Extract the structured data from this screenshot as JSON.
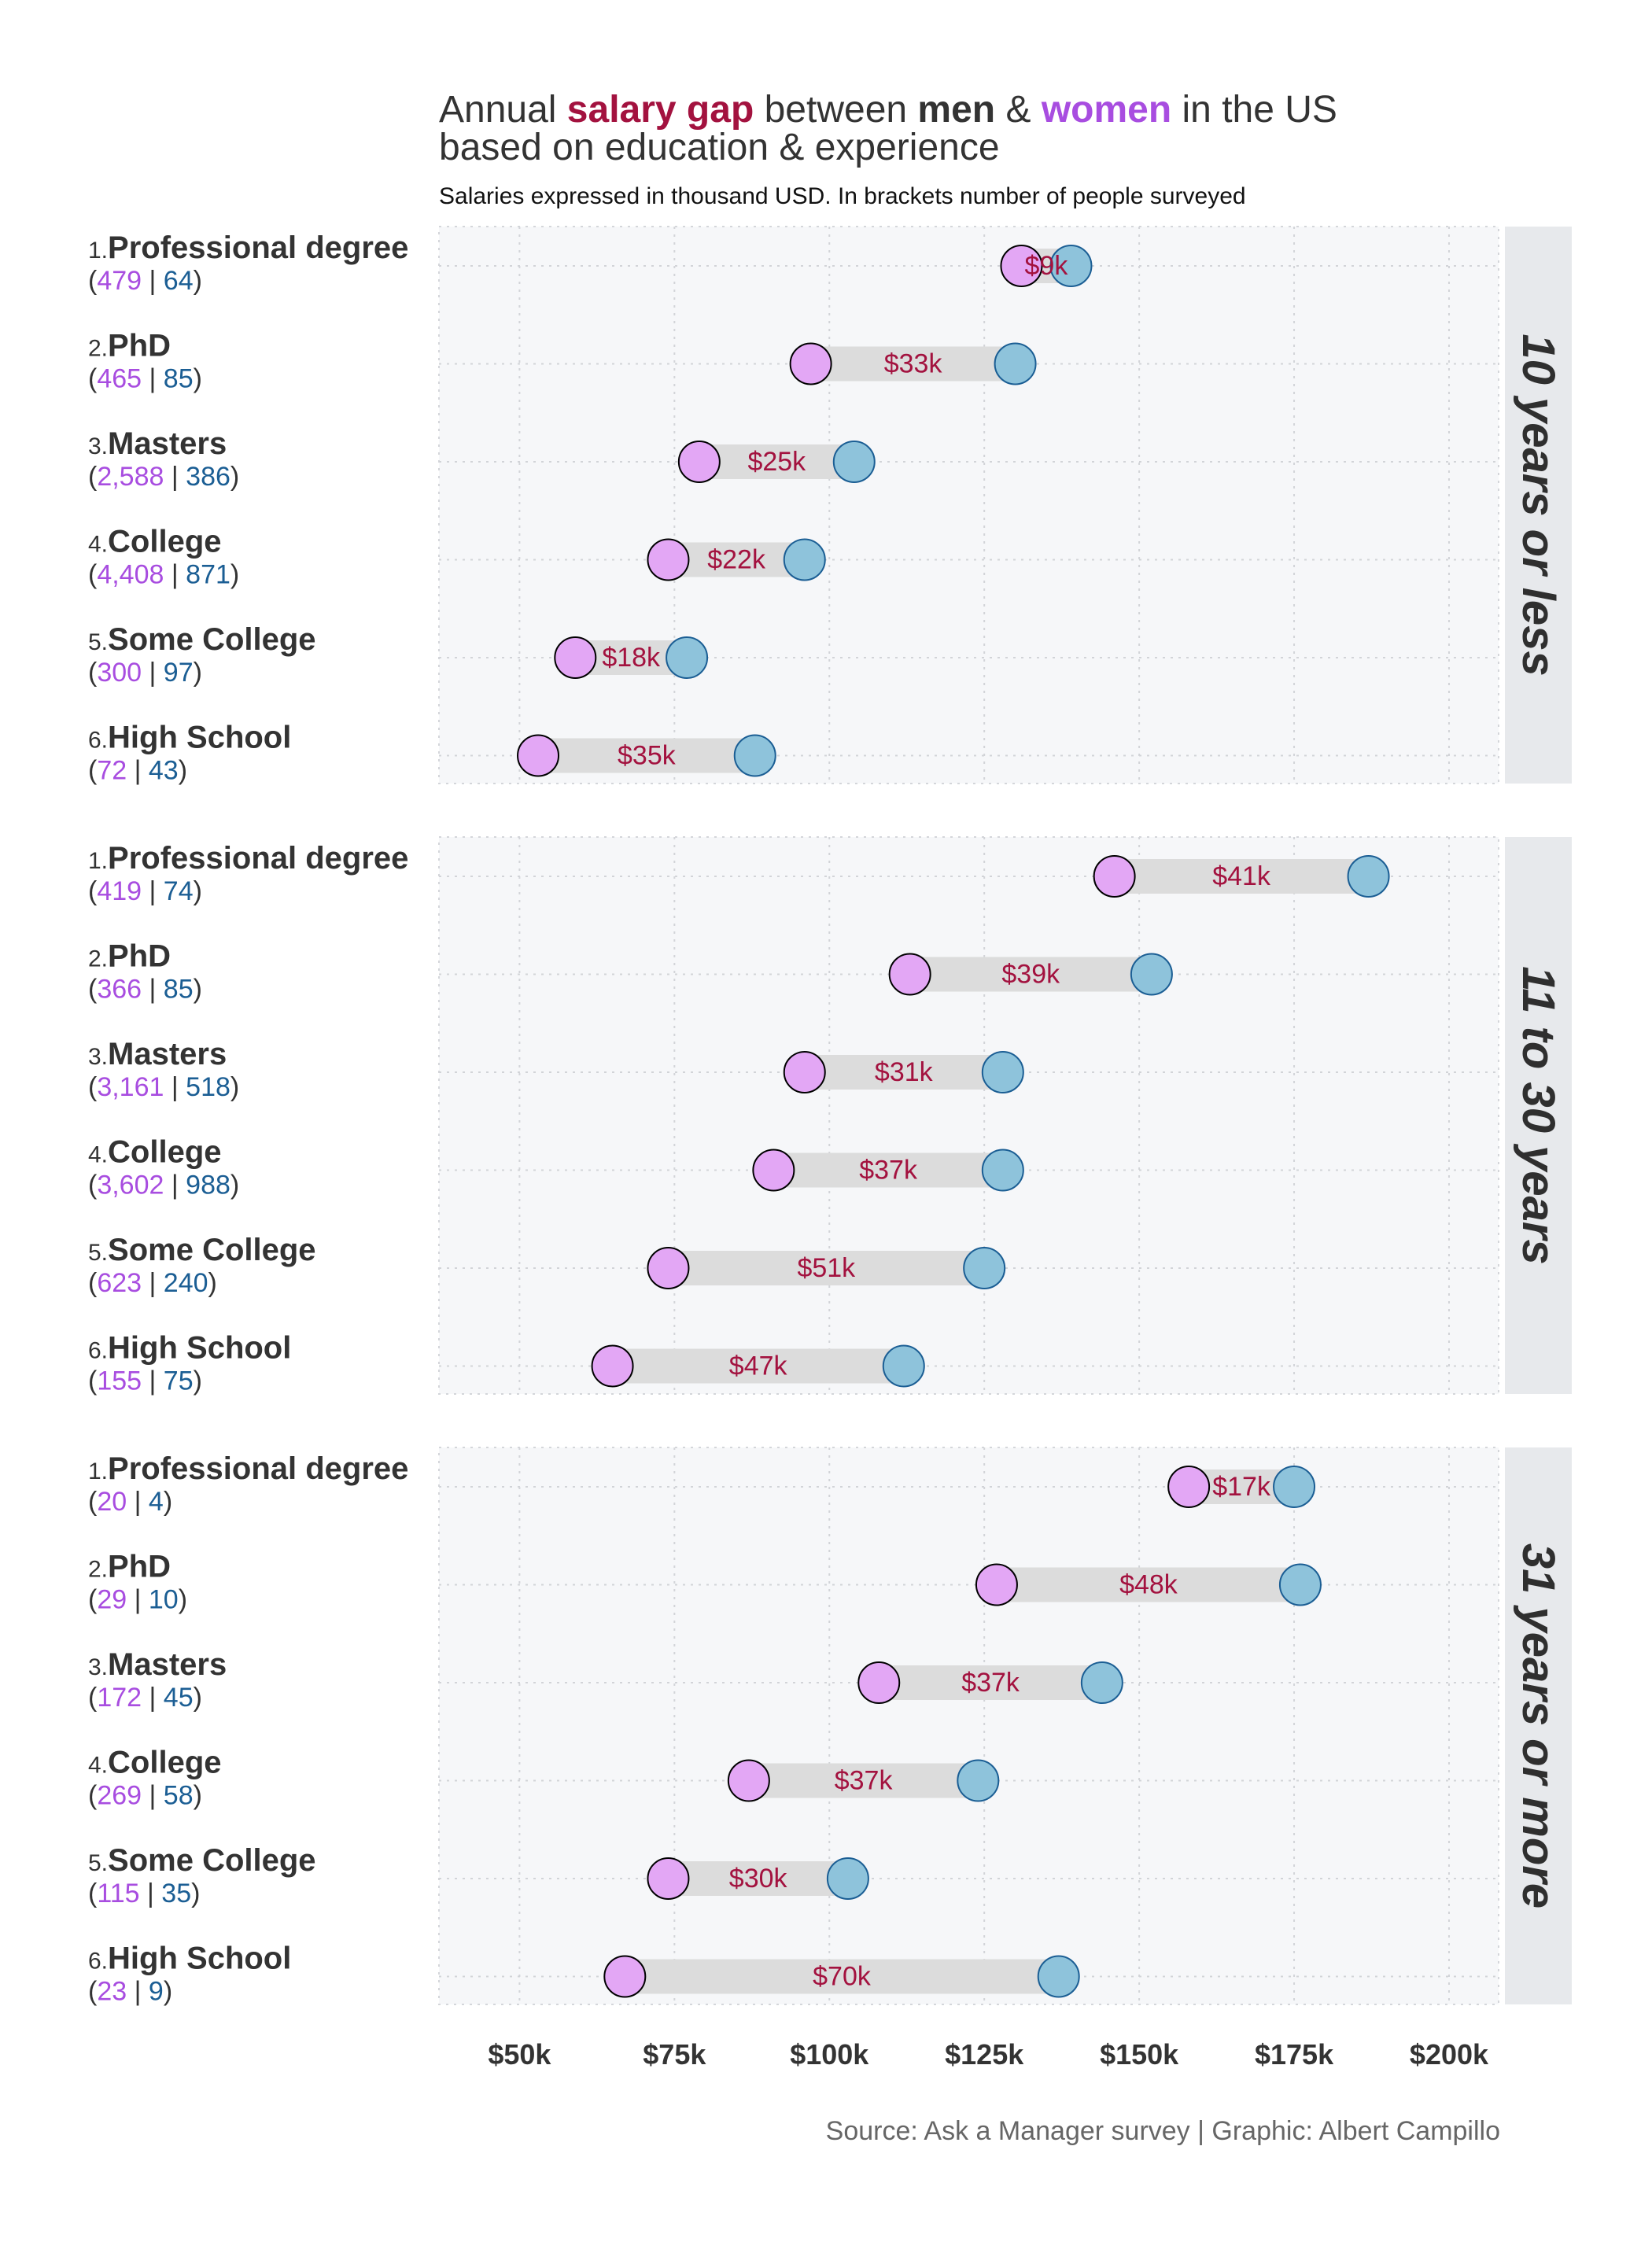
{
  "title": {
    "parts": [
      {
        "text": "Annual ",
        "style": "normal"
      },
      {
        "text": "salary gap",
        "style": "gap"
      },
      {
        "text": " between ",
        "style": "normal"
      },
      {
        "text": "men",
        "style": "men"
      },
      {
        "text": " & ",
        "style": "normal"
      },
      {
        "text": "women",
        "style": "women"
      },
      {
        "text": " in the US",
        "style": "normal"
      }
    ],
    "line2": "based on education & experience"
  },
  "subtitle": "Salaries expressed in thousand USD. In brackets number of people surveyed",
  "caption": "Source: Ask a Manager survey | Graphic: Albert Campillo",
  "colors": {
    "women": "#a84de0",
    "men": "#1b5e94",
    "gap": "#a3123f",
    "women_fill": "#e3a7f5",
    "men_fill": "#8ec3db",
    "bar": "#dcdcdc",
    "panel_bg": "#f6f7f9",
    "strip_bg": "#e7e9ec"
  },
  "chart_data": {
    "type": "dumbbell",
    "x_unit": "thousand USD",
    "x_ticks": [
      50,
      75,
      100,
      125,
      150,
      175,
      200
    ],
    "x_tick_labels": [
      "$50k",
      "$75k",
      "$100k",
      "$125k",
      "$150k",
      "$175k",
      "$200k"
    ],
    "xlim": [
      37,
      208
    ],
    "grid": true,
    "legend": "none",
    "series_names": [
      "women",
      "men"
    ],
    "panels": [
      {
        "label": "10 years or less",
        "rows": [
          {
            "num": "1.",
            "name": "Professional degree",
            "women_n": "479",
            "men_n": "64",
            "women": 131,
            "men": 139,
            "gap": "$9k"
          },
          {
            "num": "2.",
            "name": "PhD",
            "women_n": "465",
            "men_n": "85",
            "women": 97,
            "men": 130,
            "gap": "$33k"
          },
          {
            "num": "3.",
            "name": "Masters",
            "women_n": "2,588",
            "men_n": "386",
            "women": 79,
            "men": 104,
            "gap": "$25k"
          },
          {
            "num": "4.",
            "name": "College",
            "women_n": "4,408",
            "men_n": "871",
            "women": 74,
            "men": 96,
            "gap": "$22k"
          },
          {
            "num": "5.",
            "name": "Some College",
            "women_n": "300",
            "men_n": "97",
            "women": 59,
            "men": 77,
            "gap": "$18k"
          },
          {
            "num": "6.",
            "name": "High School",
            "women_n": "72",
            "men_n": "43",
            "women": 53,
            "men": 88,
            "gap": "$35k"
          }
        ]
      },
      {
        "label": "11 to 30 years",
        "rows": [
          {
            "num": "1.",
            "name": "Professional degree",
            "women_n": "419",
            "men_n": "74",
            "women": 146,
            "men": 187,
            "gap": "$41k"
          },
          {
            "num": "2.",
            "name": "PhD",
            "women_n": "366",
            "men_n": "85",
            "women": 113,
            "men": 152,
            "gap": "$39k"
          },
          {
            "num": "3.",
            "name": "Masters",
            "women_n": "3,161",
            "men_n": "518",
            "women": 96,
            "men": 128,
            "gap": "$31k"
          },
          {
            "num": "4.",
            "name": "College",
            "women_n": "3,602",
            "men_n": "988",
            "women": 91,
            "men": 128,
            "gap": "$37k"
          },
          {
            "num": "5.",
            "name": "Some College",
            "women_n": "623",
            "men_n": "240",
            "women": 74,
            "men": 125,
            "gap": "$51k"
          },
          {
            "num": "6.",
            "name": "High School",
            "women_n": "155",
            "men_n": "75",
            "women": 65,
            "men": 112,
            "gap": "$47k"
          }
        ]
      },
      {
        "label": "31 years or more",
        "rows": [
          {
            "num": "1.",
            "name": "Professional degree",
            "women_n": "20",
            "men_n": "4",
            "women": 158,
            "men": 175,
            "gap": "$17k"
          },
          {
            "num": "2.",
            "name": "PhD",
            "women_n": "29",
            "men_n": "10",
            "women": 127,
            "men": 176,
            "gap": "$48k"
          },
          {
            "num": "3.",
            "name": "Masters",
            "women_n": "172",
            "men_n": "45",
            "women": 108,
            "men": 144,
            "gap": "$37k"
          },
          {
            "num": "4.",
            "name": "College",
            "women_n": "269",
            "men_n": "58",
            "women": 87,
            "men": 124,
            "gap": "$37k"
          },
          {
            "num": "5.",
            "name": "Some College",
            "women_n": "115",
            "men_n": "35",
            "women": 74,
            "men": 103,
            "gap": "$30k"
          },
          {
            "num": "6.",
            "name": "High School",
            "women_n": "23",
            "men_n": "9",
            "women": 67,
            "men": 137,
            "gap": "$70k"
          }
        ]
      }
    ]
  }
}
